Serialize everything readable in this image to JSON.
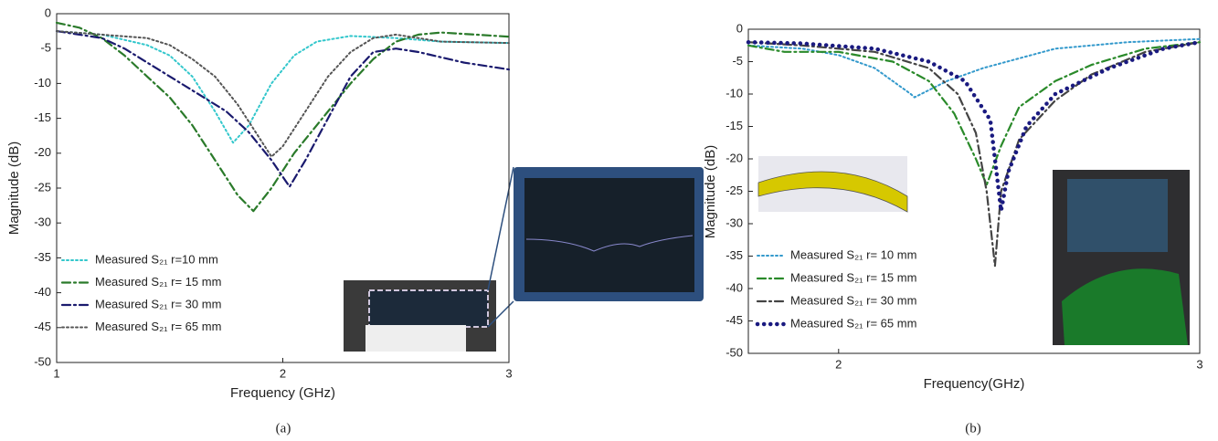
{
  "chart_data": [
    {
      "type": "line",
      "caption": "(a)",
      "xlabel": "Frequency (GHz)",
      "ylabel": "Magnitude (dB)",
      "xlim": [
        1,
        3
      ],
      "xticks": [
        1,
        2,
        3
      ],
      "ylim": [
        -50,
        0
      ],
      "yticks": [
        0,
        -5,
        -10,
        -15,
        -20,
        -25,
        -30,
        -35,
        -40,
        -45,
        -50
      ],
      "legend": "lower left",
      "series": [
        {
          "name": "Measured S₂₁ r=10 mm",
          "color": "#33c7cc",
          "linestyle": "dotted",
          "x": [
            1,
            1.2,
            1.4,
            1.5,
            1.6,
            1.7,
            1.78,
            1.85,
            1.95,
            2.05,
            2.15,
            2.3,
            2.5,
            2.7,
            3
          ],
          "values": [
            -2.5,
            -3,
            -4.5,
            -6,
            -9,
            -14,
            -18.5,
            -16,
            -10,
            -6,
            -4,
            -3.2,
            -3.5,
            -4,
            -4.2
          ]
        },
        {
          "name": "Measured S₂₁ r= 15 mm",
          "color": "#2a7a2a",
          "linestyle": "dashdot",
          "x": [
            1,
            1.1,
            1.2,
            1.3,
            1.4,
            1.5,
            1.6,
            1.7,
            1.8,
            1.87,
            1.95,
            2.05,
            2.2,
            2.3,
            2.4,
            2.5,
            2.6,
            2.7,
            2.85,
            3
          ],
          "values": [
            -1.3,
            -2,
            -3.5,
            -6,
            -9,
            -12,
            -16,
            -21,
            -26,
            -28.3,
            -25,
            -20,
            -14,
            -10,
            -6.5,
            -4,
            -3,
            -2.7,
            -3,
            -3.3
          ]
        },
        {
          "name": "Measured S₂₁ r= 30 mm",
          "color": "#1a1a6e",
          "linestyle": "dashdot",
          "x": [
            1,
            1.2,
            1.3,
            1.45,
            1.6,
            1.75,
            1.85,
            1.95,
            2.03,
            2.1,
            2.2,
            2.3,
            2.4,
            2.5,
            2.6,
            2.8,
            3
          ],
          "values": [
            -2.5,
            -3.5,
            -5,
            -8,
            -11,
            -14,
            -17,
            -21,
            -24.8,
            -21,
            -15,
            -9,
            -5.5,
            -5,
            -5.5,
            -7,
            -8
          ]
        },
        {
          "name": "Measured S₂₁ r= 65 mm",
          "color": "#555555",
          "linestyle": "dotted",
          "x": [
            1,
            1.2,
            1.4,
            1.5,
            1.6,
            1.7,
            1.8,
            1.9,
            1.95,
            2.0,
            2.1,
            2.2,
            2.3,
            2.4,
            2.5,
            2.7,
            3
          ],
          "values": [
            -2.5,
            -3,
            -3.5,
            -4.5,
            -6.5,
            -9,
            -13,
            -18,
            -20.5,
            -19,
            -14,
            -9,
            -5.5,
            -3.5,
            -3,
            -4,
            -4.2
          ]
        }
      ]
    },
    {
      "type": "line",
      "caption": "(b)",
      "xlabel": "Frequency(GHz)",
      "ylabel": "Magnitude (dB)",
      "xlim": [
        1.75,
        3
      ],
      "xticks": [
        2,
        3
      ],
      "ylim": [
        -50,
        0
      ],
      "yticks": [
        0,
        -5,
        -10,
        -15,
        -20,
        -25,
        -30,
        -35,
        -40,
        -45,
        -50
      ],
      "legend": "lower left",
      "series": [
        {
          "name": "Measured S₂₁ r= 10 mm",
          "color": "#3399cc",
          "linestyle": "dotted",
          "x": [
            1.75,
            1.9,
            2.0,
            2.1,
            2.2,
            2.21,
            2.3,
            2.4,
            2.5,
            2.6,
            2.8,
            3
          ],
          "values": [
            -2.5,
            -3,
            -4,
            -6,
            -10,
            -10.5,
            -8,
            -6,
            -4.5,
            -3,
            -2,
            -1.5
          ]
        },
        {
          "name": "Measured S₂₁ r= 15 mm",
          "color": "#2a8a2a",
          "linestyle": "dashdot",
          "x": [
            1.75,
            1.85,
            2.0,
            2.15,
            2.25,
            2.32,
            2.38,
            2.41,
            2.45,
            2.5,
            2.6,
            2.7,
            2.85,
            3
          ],
          "values": [
            -2.5,
            -3.5,
            -3.5,
            -5,
            -8,
            -13,
            -20,
            -24,
            -18,
            -12,
            -8,
            -5.5,
            -3,
            -2
          ]
        },
        {
          "name": "Measured S₂₁ r= 30 mm",
          "color": "#444444",
          "linestyle": "dashdot",
          "x": [
            1.75,
            1.9,
            2.1,
            2.25,
            2.33,
            2.38,
            2.41,
            2.433,
            2.45,
            2.5,
            2.6,
            2.7,
            2.85,
            3
          ],
          "values": [
            -2,
            -2.5,
            -3.5,
            -6,
            -10,
            -16,
            -25,
            -36.5,
            -25,
            -17,
            -11,
            -7,
            -3.5,
            -2
          ]
        },
        {
          "name": "Measured S₂₁ r= 65 mm",
          "color": "#1a1a80",
          "linestyle": "dots",
          "x": [
            1.75,
            1.9,
            2.1,
            2.25,
            2.35,
            2.42,
            2.45,
            2.47,
            2.52,
            2.6,
            2.75,
            2.9,
            3
          ],
          "values": [
            -2,
            -2.2,
            -3,
            -5,
            -8,
            -14,
            -28,
            -22,
            -15,
            -10,
            -6,
            -3,
            -2
          ]
        }
      ]
    }
  ]
}
